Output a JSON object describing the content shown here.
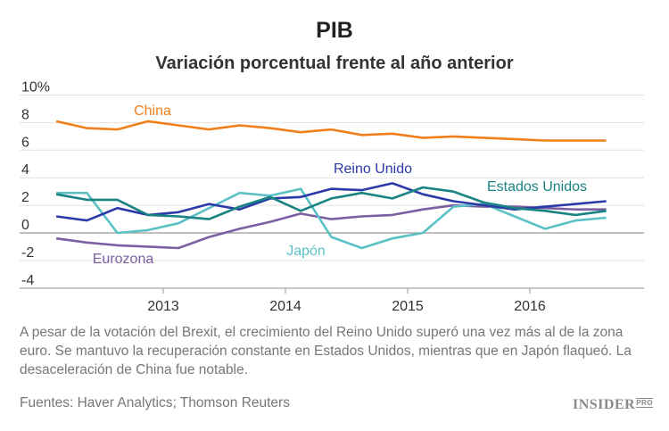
{
  "chart_data": {
    "type": "line",
    "title": "PIB",
    "subtitle": "Variación porcentual frente al año anterior",
    "ylim": [
      -4,
      10
    ],
    "yticks": [
      -4,
      -2,
      0,
      2,
      4,
      6,
      8,
      10
    ],
    "ytick_labels": [
      "-4",
      "-2",
      "0",
      "2",
      "4",
      "6",
      "8",
      "10%"
    ],
    "xticks": [
      2013,
      2014,
      2015,
      2016
    ],
    "xtick_labels": [
      "2013",
      "2014",
      "2015",
      "2016"
    ],
    "grid": true,
    "x": [
      2012.125,
      2012.375,
      2012.625,
      2012.875,
      2013.125,
      2013.375,
      2013.625,
      2013.875,
      2014.125,
      2014.375,
      2014.625,
      2014.875,
      2015.125,
      2015.375,
      2015.625,
      2015.875,
      2016.125,
      2016.375,
      2016.625
    ],
    "series": [
      {
        "name": "China",
        "color": "#f07f1c",
        "values": [
          8.1,
          7.6,
          7.5,
          8.1,
          7.8,
          7.5,
          7.8,
          7.6,
          7.3,
          7.5,
          7.1,
          7.2,
          6.9,
          7.0,
          6.9,
          6.8,
          6.7,
          6.7,
          6.7
        ]
      },
      {
        "name": "Reino Unido",
        "color": "#2b3aa8",
        "values": [
          1.2,
          0.9,
          1.8,
          1.3,
          1.5,
          2.1,
          1.7,
          2.5,
          2.6,
          3.2,
          3.1,
          3.6,
          2.8,
          2.3,
          2.0,
          1.7,
          1.9,
          2.1,
          2.3
        ]
      },
      {
        "name": "Estados Unidos",
        "color": "#198383",
        "values": [
          2.8,
          2.4,
          2.4,
          1.3,
          1.2,
          1.0,
          1.9,
          2.6,
          1.6,
          2.5,
          2.9,
          2.5,
          3.3,
          3.0,
          2.2,
          1.8,
          1.6,
          1.3,
          1.6
        ]
      },
      {
        "name": "Japón",
        "color": "#5cc1c5",
        "values": [
          2.9,
          2.9,
          0.0,
          0.2,
          0.7,
          1.8,
          2.9,
          2.7,
          3.2,
          -0.3,
          -1.1,
          -0.4,
          0.0,
          1.9,
          2.1,
          1.2,
          0.3,
          0.9,
          1.1
        ]
      },
      {
        "name": "Eurozona",
        "color": "#7b5fa2",
        "values": [
          -0.4,
          -0.7,
          -0.9,
          -1.0,
          -1.1,
          -0.3,
          0.3,
          0.8,
          1.4,
          1.0,
          1.2,
          1.3,
          1.7,
          2.0,
          1.9,
          1.9,
          1.8,
          1.7,
          1.7
        ]
      }
    ]
  },
  "note": "A pesar de la votación del Brexit, el crecimiento del Reino Unido superó una vez más al de la zona euro. Se mantuvo la recuperación constante en Estados Unidos, mientras que en Japón flaqueó. La desaceleración de China fue notable.",
  "source": "Fuentes: Haver Analytics; Thomson Reuters",
  "logo": {
    "main": "INSIDER",
    "sub": "PRO"
  }
}
